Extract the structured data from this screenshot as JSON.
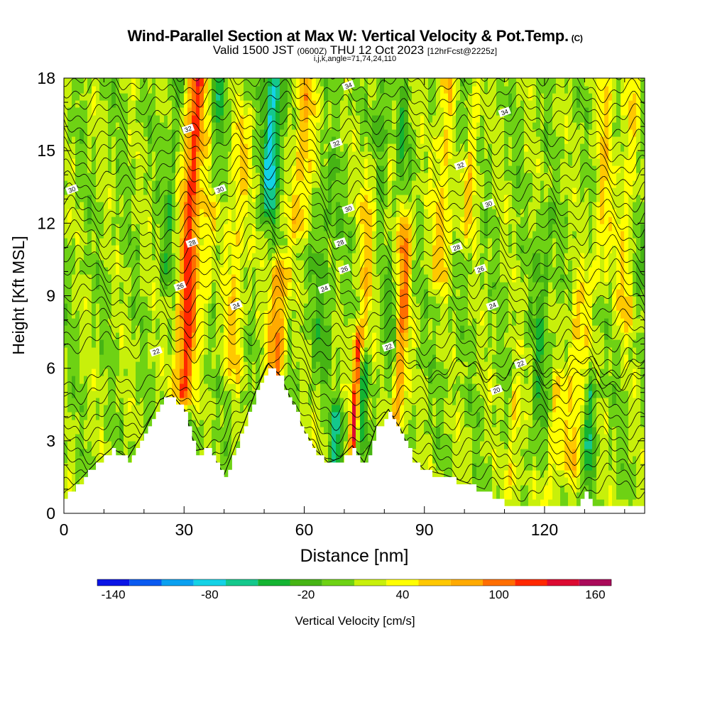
{
  "chart_data": {
    "type": "heatmap",
    "title": "Wind-Parallel Section at Max W: Vertical Velocity & Pot.Temp.",
    "title_mark": "(C)",
    "subtitle_main": "Valid 1500 JST",
    "subtitle_utc": "(0600Z)",
    "subtitle_date": "THU 12 Oct 2023",
    "subtitle_fcst": "[12hrFcst@2225z]",
    "subtitle2": "i,j,k,angle=71,74,24,110",
    "xlabel": "Distance [nm]",
    "ylabel": "Height [Kft MSL]",
    "xlim": [
      0,
      145
    ],
    "ylim": [
      0,
      18
    ],
    "x_ticks": [
      "0",
      "30",
      "60",
      "90",
      "120"
    ],
    "y_ticks": [
      "0",
      "3",
      "6",
      "9",
      "12",
      "15",
      "18"
    ],
    "colorbar": {
      "label": "Vertical Velocity [cm/s]",
      "tick_labels": [
        "-140",
        "-80",
        "-20",
        "40",
        "100",
        "160"
      ],
      "levels": [
        -150,
        -130,
        -110,
        -90,
        -70,
        -50,
        -30,
        -10,
        10,
        30,
        50,
        70,
        90,
        110,
        130,
        150,
        170
      ],
      "colors": [
        "#0a14e6",
        "#0a5af0",
        "#0aa0f0",
        "#14d2e6",
        "#14c88c",
        "#14b432",
        "#46b414",
        "#6ed214",
        "#c8f00a",
        "#ffff00",
        "#ffc800",
        "#ffaa00",
        "#ff6e00",
        "#ff2800",
        "#dc0a32",
        "#aa0a5a",
        "#6e148c"
      ]
    },
    "terrain": {
      "x": [
        0,
        4,
        8,
        12,
        16,
        20,
        24,
        27,
        30,
        33,
        36,
        40,
        44,
        48,
        51,
        54,
        57,
        60,
        63,
        66,
        69,
        72,
        75,
        78,
        81,
        84,
        87,
        90,
        95,
        100,
        105,
        110,
        115,
        120,
        125,
        128,
        130,
        132,
        135,
        140,
        145
      ],
      "kft": [
        0.7,
        1.3,
        2.0,
        2.6,
        2.2,
        3.3,
        4.6,
        4.8,
        4.2,
        2.5,
        2.6,
        1.5,
        3.2,
        5.0,
        6.1,
        5.6,
        4.5,
        3.3,
        2.5,
        2.0,
        2.2,
        2.7,
        2.0,
        3.5,
        4.2,
        3.4,
        2.2,
        1.7,
        1.5,
        1.2,
        0.9,
        0.4,
        0.4,
        0.4,
        0.4,
        0.4,
        1.0,
        0.4,
        0.4,
        0.4,
        0.4
      ]
    },
    "updraft_columns": [
      {
        "x": 30,
        "w": 2.4,
        "peak": 110,
        "top": 18,
        "bottom": 5
      },
      {
        "x": 35.5,
        "w": 1.5,
        "peak": 40,
        "top": 16,
        "bottom": 9
      },
      {
        "x": 42,
        "w": 2.5,
        "peak": 40,
        "top": 16,
        "bottom": 6
      },
      {
        "x": 53,
        "w": 2.3,
        "peak": 85,
        "top": 10,
        "bottom": 6
      },
      {
        "x": 59,
        "w": 2.5,
        "peak": 55,
        "top": 18,
        "bottom": 12
      },
      {
        "x": 72.5,
        "w": 1.2,
        "peak": 120,
        "top": 7,
        "bottom": 3
      },
      {
        "x": 75,
        "w": 1.8,
        "peak": 45,
        "top": 14,
        "bottom": 8
      },
      {
        "x": 83.5,
        "w": 1.6,
        "peak": 80,
        "top": 12,
        "bottom": 4
      },
      {
        "x": 94,
        "w": 2.5,
        "peak": 45,
        "top": 18,
        "bottom": 10
      },
      {
        "x": 101,
        "w": 1.8,
        "peak": 40,
        "top": 18,
        "bottom": 12
      },
      {
        "x": 112,
        "w": 1.5,
        "peak": 40,
        "top": 5,
        "bottom": 1
      },
      {
        "x": 122,
        "w": 1.5,
        "peak": 40,
        "top": 5,
        "bottom": 1
      },
      {
        "x": 127,
        "w": 2.5,
        "peak": 45,
        "top": 9,
        "bottom": 2
      },
      {
        "x": 134,
        "w": 2,
        "peak": 40,
        "top": 18,
        "bottom": 10
      },
      {
        "x": 140,
        "w": 2.5,
        "peak": 40,
        "top": 18,
        "bottom": 8
      }
    ],
    "downdraft_columns": [
      {
        "x": 26,
        "w": 1.5,
        "peak": -30,
        "top": 18,
        "bottom": 10
      },
      {
        "x": 37.5,
        "w": 1.8,
        "peak": -50,
        "top": 18,
        "bottom": 14
      },
      {
        "x": 51.5,
        "w": 2.2,
        "peak": -85,
        "top": 18,
        "bottom": 13
      },
      {
        "x": 64,
        "w": 3,
        "peak": -25,
        "top": 14,
        "bottom": 6
      },
      {
        "x": 68,
        "w": 1.5,
        "peak": -60,
        "top": 4,
        "bottom": 2
      },
      {
        "x": 74,
        "w": 1.2,
        "peak": -55,
        "top": 6,
        "bottom": 3
      },
      {
        "x": 79,
        "w": 1.5,
        "peak": -35,
        "top": 18,
        "bottom": 14
      },
      {
        "x": 81,
        "w": 1.8,
        "peak": -30,
        "top": 9,
        "bottom": 6
      },
      {
        "x": 84,
        "w": 1.5,
        "peak": -30,
        "top": 17,
        "bottom": 14
      },
      {
        "x": 99,
        "w": 2,
        "peak": -30,
        "top": 18,
        "bottom": 15
      },
      {
        "x": 118,
        "w": 2,
        "peak": -30,
        "top": 12,
        "bottom": 3
      },
      {
        "x": 131,
        "w": 1.2,
        "peak": -65,
        "top": 5,
        "bottom": 2
      },
      {
        "x": 143,
        "w": 2,
        "peak": -25,
        "top": 18,
        "bottom": 10
      }
    ],
    "theta_contours": {
      "levels": [
        20,
        22,
        24,
        26,
        28,
        30,
        32,
        34
      ],
      "labels": [
        {
          "text": "34",
          "x": 71,
          "kft": 17.7
        },
        {
          "text": "34",
          "x": 110,
          "kft": 16.6
        },
        {
          "text": "32",
          "x": 31,
          "kft": 15.9
        },
        {
          "text": "32",
          "x": 68,
          "kft": 15.3
        },
        {
          "text": "32",
          "x": 99,
          "kft": 14.4
        },
        {
          "text": "30",
          "x": 2,
          "kft": 13.4
        },
        {
          "text": "30",
          "x": 39,
          "kft": 13.4
        },
        {
          "text": "30",
          "x": 71,
          "kft": 12.6
        },
        {
          "text": "30",
          "x": 106,
          "kft": 12.8
        },
        {
          "text": "28",
          "x": 32,
          "kft": 11.2
        },
        {
          "text": "28",
          "x": 69,
          "kft": 11.2
        },
        {
          "text": "28",
          "x": 98,
          "kft": 11.0
        },
        {
          "text": "26",
          "x": 29,
          "kft": 9.4
        },
        {
          "text": "26",
          "x": 70,
          "kft": 10.1
        },
        {
          "text": "26",
          "x": 104,
          "kft": 10.1
        },
        {
          "text": "24",
          "x": 43,
          "kft": 8.6
        },
        {
          "text": "24",
          "x": 65,
          "kft": 9.3
        },
        {
          "text": "24",
          "x": 107,
          "kft": 8.6
        },
        {
          "text": "22",
          "x": 23,
          "kft": 6.7
        },
        {
          "text": "22",
          "x": 81,
          "kft": 6.9
        },
        {
          "text": "22",
          "x": 114,
          "kft": 6.2
        },
        {
          "text": "20",
          "x": 108,
          "kft": 5.1
        }
      ]
    }
  }
}
